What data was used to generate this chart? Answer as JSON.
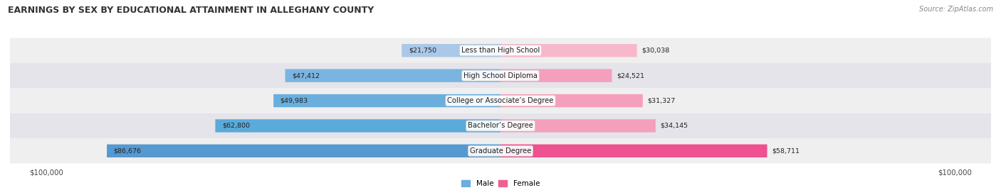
{
  "title": "EARNINGS BY SEX BY EDUCATIONAL ATTAINMENT IN ALLEGHANY COUNTY",
  "source": "Source: ZipAtlas.com",
  "categories": [
    "Less than High School",
    "High School Diploma",
    "College or Associate’s Degree",
    "Bachelor’s Degree",
    "Graduate Degree"
  ],
  "male_values": [
    21750,
    47412,
    49983,
    62800,
    86676
  ],
  "female_values": [
    30038,
    24521,
    31327,
    34145,
    58711
  ],
  "max_value": 100000,
  "male_colors": [
    "#aac8e8",
    "#7ab4e0",
    "#6aaedd",
    "#5aaada",
    "#5599d0"
  ],
  "female_colors": [
    "#f8b8cc",
    "#f4a0bc",
    "#f4a0bc",
    "#f4a0bc",
    "#ee5090"
  ],
  "row_bg_colors": [
    "#efefef",
    "#e4e4ea"
  ],
  "title_fontsize": 9.0,
  "label_fontsize": 7.2,
  "value_fontsize": 6.8,
  "legend_fontsize": 7.5,
  "source_fontsize": 7.0,
  "bar_height": 0.52,
  "fig_bg": "#ffffff"
}
